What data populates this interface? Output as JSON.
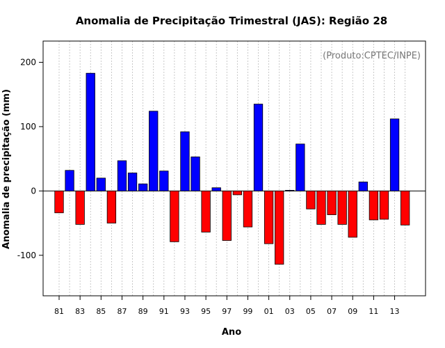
{
  "chart_data": {
    "type": "bar",
    "title": "Anomalia de Precipitação Trimestral (JAS): Região 28",
    "xlabel": "Ano",
    "ylabel": "Anomalia de precipitação (mm)",
    "annotation": "(Produto:CPTEC/INPE)",
    "ylim": [
      -163,
      233
    ],
    "yticks": [
      -100,
      0,
      100,
      200
    ],
    "ytick_labels": [
      "-100",
      "0",
      "100",
      "200"
    ],
    "grid": "vertical dotted",
    "categories": [
      "81",
      "82",
      "83",
      "84",
      "85",
      "86",
      "87",
      "88",
      "89",
      "90",
      "91",
      "92",
      "93",
      "94",
      "95",
      "96",
      "97",
      "98",
      "99",
      "00",
      "01",
      "02",
      "03",
      "04",
      "05",
      "06",
      "07",
      "08",
      "09",
      "10",
      "11",
      "12",
      "13",
      "14"
    ],
    "xtick_labels": [
      "81",
      "83",
      "85",
      "87",
      "89",
      "91",
      "93",
      "95",
      "97",
      "99",
      "01",
      "03",
      "05",
      "07",
      "09",
      "11",
      "13"
    ],
    "values": [
      -34,
      32,
      -52,
      183,
      20,
      -50,
      47,
      28,
      11,
      124,
      31,
      -79,
      92,
      53,
      -64,
      5,
      -77,
      -6,
      -56,
      135,
      -82,
      -114,
      1,
      73,
      -28,
      -52,
      -37,
      -52,
      -72,
      14,
      -45,
      -44,
      112,
      -53
    ],
    "colors": {
      "positive": "#0000ff",
      "negative": "#ff0000",
      "outline": "#000000",
      "grid": "#bbbbbb"
    }
  }
}
